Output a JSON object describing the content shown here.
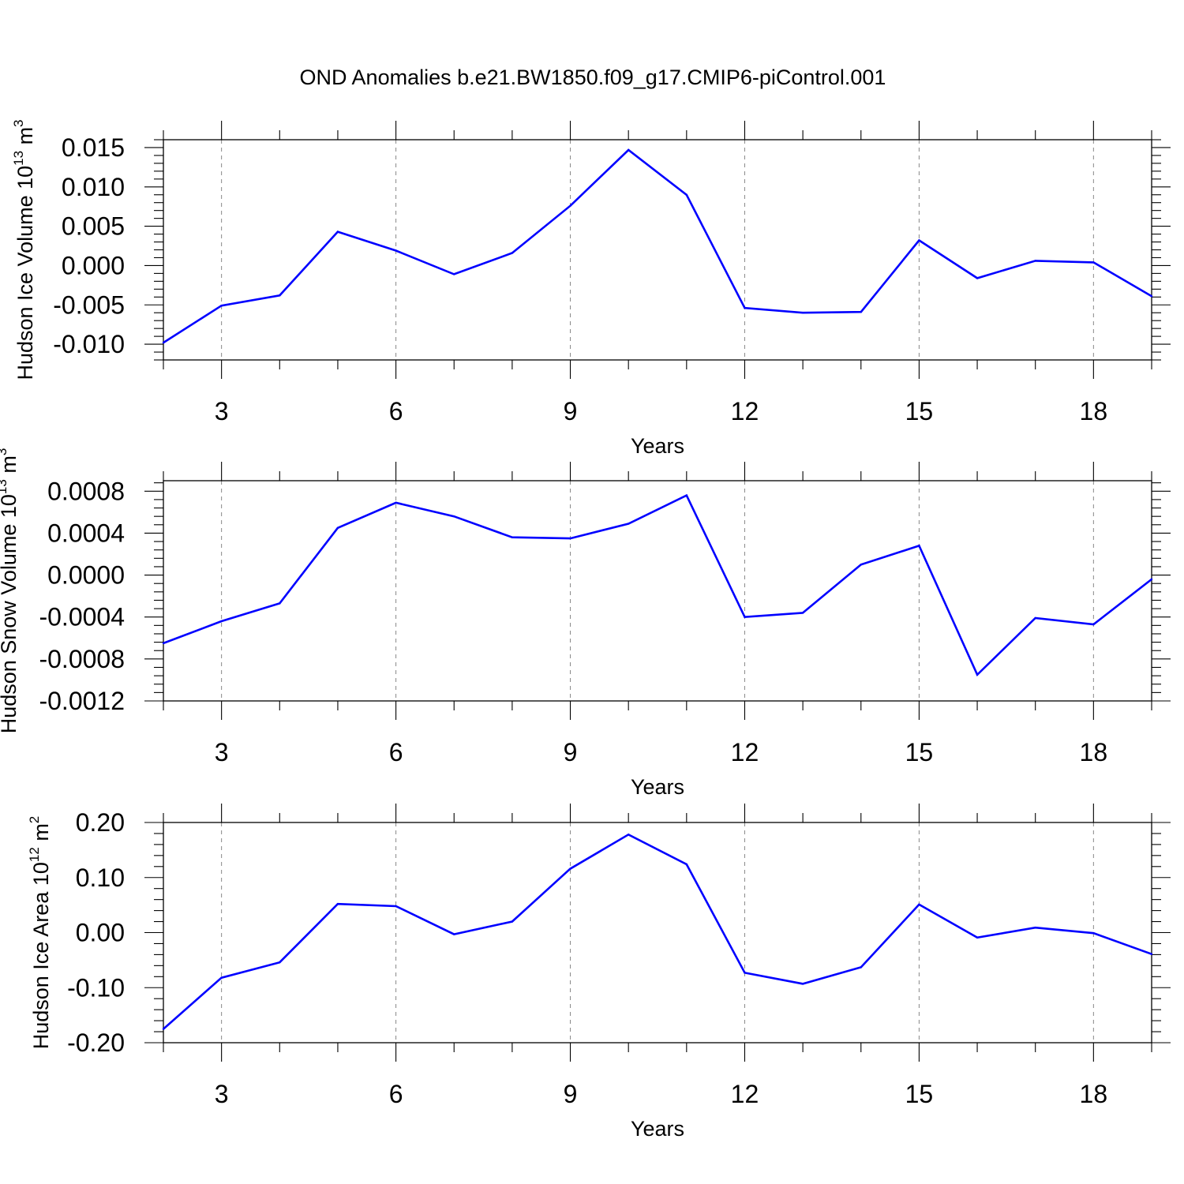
{
  "figure": {
    "title": "OND Anomalies b.e21.BW1850.f09_g17.CMIP6-piControl.001"
  },
  "chart_data": [
    {
      "type": "line",
      "xlabel": "Years",
      "ylabel": {
        "main": "Hudson Ice Volume 10",
        "exp": "13",
        "unit": " m",
        "unit_exp": "3"
      },
      "xlim": [
        2,
        19
      ],
      "ylim": [
        -0.012,
        0.016
      ],
      "xticks": [
        3,
        6,
        9,
        12,
        15,
        18
      ],
      "xtick_labels": [
        "3",
        "6",
        "9",
        "12",
        "15",
        "18"
      ],
      "yticks": [
        -0.01,
        -0.005,
        0.0,
        0.005,
        0.01,
        0.015
      ],
      "ytick_labels": [
        "-0.010",
        "-0.005",
        "0.000",
        "0.005",
        "0.010",
        "0.015"
      ],
      "grid": "vertical dashed at major x ticks",
      "line_color": "#0000ff",
      "x": [
        2,
        3,
        4,
        5,
        6,
        7,
        8,
        9,
        10,
        11,
        12,
        13,
        14,
        15,
        16,
        17,
        18,
        19
      ],
      "values": [
        -0.0098,
        -0.0051,
        -0.0038,
        0.0043,
        0.0019,
        -0.0011,
        0.0016,
        0.0076,
        0.0147,
        0.009,
        -0.0054,
        -0.006,
        -0.0059,
        0.0032,
        -0.0016,
        0.0006,
        0.0004,
        -0.0039
      ]
    },
    {
      "type": "line",
      "xlabel": "Years",
      "ylabel": {
        "main": "Hudson Snow Volume 10",
        "exp": "13",
        "unit": " m",
        "unit_exp": "3"
      },
      "xlim": [
        2,
        19
      ],
      "ylim": [
        -0.0012,
        0.0009
      ],
      "xticks": [
        3,
        6,
        9,
        12,
        15,
        18
      ],
      "xtick_labels": [
        "3",
        "6",
        "9",
        "12",
        "15",
        "18"
      ],
      "yticks": [
        -0.0012,
        -0.0008,
        -0.0004,
        0.0,
        0.0004,
        0.0008
      ],
      "ytick_labels": [
        "-0.0012",
        "-0.0008",
        "-0.0004",
        "0.0000",
        "0.0004",
        "0.0008"
      ],
      "grid": "vertical dashed at major x ticks",
      "line_color": "#0000ff",
      "x": [
        2,
        3,
        4,
        5,
        6,
        7,
        8,
        9,
        10,
        11,
        12,
        13,
        14,
        15,
        16,
        17,
        18,
        19
      ],
      "values": [
        -0.00065,
        -0.00044,
        -0.00027,
        0.00045,
        0.00069,
        0.00056,
        0.00036,
        0.00035,
        0.00049,
        0.00076,
        -0.0004,
        -0.00036,
        0.0001,
        0.00028,
        -0.00095,
        -0.00041,
        -0.00047,
        -4e-05
      ]
    },
    {
      "type": "line",
      "xlabel": "Years",
      "ylabel": {
        "main": "Hudson Ice Area 10",
        "exp": "12",
        "unit": " m",
        "unit_exp": "2"
      },
      "xlim": [
        2,
        19
      ],
      "ylim": [
        -0.2,
        0.2
      ],
      "xticks": [
        3,
        6,
        9,
        12,
        15,
        18
      ],
      "xtick_labels": [
        "3",
        "6",
        "9",
        "12",
        "15",
        "18"
      ],
      "yticks": [
        -0.2,
        -0.1,
        0.0,
        0.1,
        0.2
      ],
      "ytick_labels": [
        "-0.20",
        "-0.10",
        "0.00",
        "0.10",
        "0.20"
      ],
      "grid": "vertical dashed at major x ticks",
      "line_color": "#0000ff",
      "x": [
        2,
        3,
        4,
        5,
        6,
        7,
        8,
        9,
        10,
        11,
        12,
        13,
        14,
        15,
        16,
        17,
        18,
        19
      ],
      "values": [
        -0.175,
        -0.082,
        -0.054,
        0.052,
        0.048,
        -0.003,
        0.02,
        0.116,
        0.178,
        0.124,
        -0.073,
        -0.093,
        -0.063,
        0.051,
        -0.009,
        0.009,
        -0.001,
        -0.039
      ]
    }
  ]
}
